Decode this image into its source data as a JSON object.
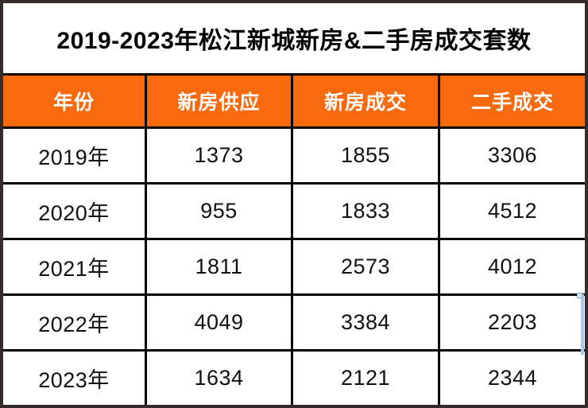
{
  "chart_data": {
    "type": "table",
    "title": "2019-2023年松江新城新房&二手房成交套数",
    "columns": [
      "年份",
      "新房供应",
      "新房成交",
      "二手成交"
    ],
    "rows": [
      [
        "2019年",
        "1373",
        "1855",
        "3306"
      ],
      [
        "2020年",
        "955",
        "1833",
        "4512"
      ],
      [
        "2021年",
        "1811",
        "2573",
        "4012"
      ],
      [
        "2022年",
        "4049",
        "3384",
        "2203"
      ],
      [
        "2023年",
        "1634",
        "2121",
        "2344"
      ]
    ]
  },
  "colors": {
    "header_bg": "#F9690E",
    "header_text": "#FFFFFF",
    "frame_border": "#362B2B",
    "grid_line": "#000000",
    "body_text": "#111111",
    "selection_artifact": "#A6C9EC"
  }
}
